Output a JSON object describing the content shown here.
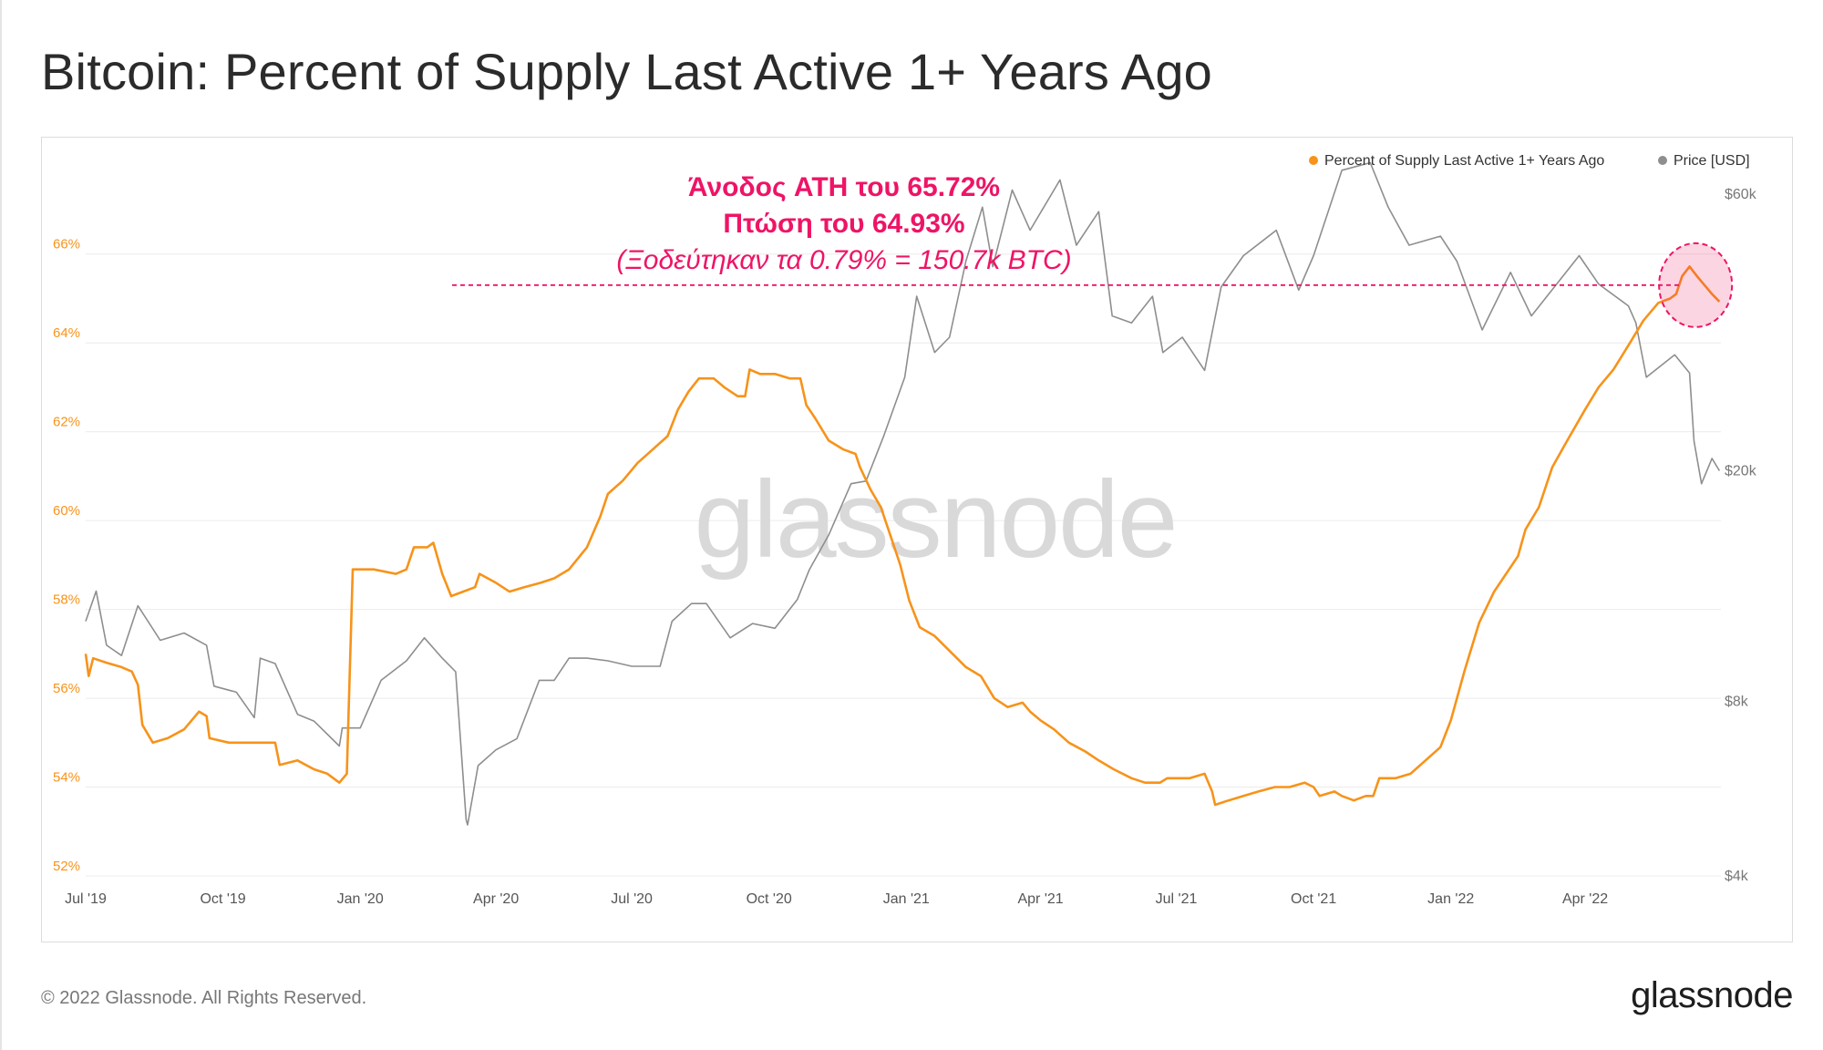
{
  "title": "Bitcoin: Percent of Supply Last Active 1+ Years Ago",
  "footer": {
    "copyright": "© 2022 Glassnode. All Rights Reserved.",
    "logo": "glassnode"
  },
  "watermark": "glassnode",
  "annotation": {
    "line1": "Άνοδος ATH του 65.72%",
    "line2": "Πτώση του 64.93%",
    "line3": "(Ξοδεύτηκαν τα 0.79% = 150.7k BTC)",
    "color": "#ee1466"
  },
  "chart_data": {
    "type": "line",
    "x_tick_labels": [
      "Jul '19",
      "Oct '19",
      "Jan '20",
      "Apr '20",
      "Jul '20",
      "Oct '20",
      "Jan '21",
      "Apr '21",
      "Jul '21",
      "Oct '21",
      "Jan '22",
      "Apr '22"
    ],
    "x_tick_dates": [
      "2019-07-01",
      "2019-10-01",
      "2020-01-01",
      "2020-04-01",
      "2020-07-01",
      "2020-10-01",
      "2021-01-01",
      "2021-04-01",
      "2021-07-01",
      "2021-10-01",
      "2022-01-01",
      "2022-04-01"
    ],
    "x_range": [
      "2019-07-01",
      "2022-07-01"
    ],
    "y_left": {
      "ticks": [
        52,
        54,
        56,
        58,
        60,
        62,
        64,
        66
      ],
      "tick_labels": [
        "52%",
        "54%",
        "56%",
        "58%",
        "60%",
        "62%",
        "64%",
        "66%"
      ],
      "range": [
        52,
        67.8
      ],
      "color": "#f7931a"
    },
    "y_right": {
      "scale": "log",
      "tick_labels": [
        "$4k",
        "$8k",
        "$20k",
        "$60k"
      ],
      "ticks": [
        4000,
        8000,
        20000,
        60000
      ],
      "range": [
        4000,
        65000
      ],
      "color": "#777777"
    },
    "grid": true,
    "legend_position": "top-right",
    "series": [
      {
        "name": "Percent of Supply Last Active 1+ Years Ago",
        "axis": "left",
        "color": "#f7931a",
        "points": [
          [
            "2019-07-01",
            57.0
          ],
          [
            "2019-07-03",
            56.5
          ],
          [
            "2019-07-06",
            56.9
          ],
          [
            "2019-07-15",
            56.8
          ],
          [
            "2019-07-25",
            56.7
          ],
          [
            "2019-08-01",
            56.6
          ],
          [
            "2019-08-05",
            56.3
          ],
          [
            "2019-08-08",
            55.4
          ],
          [
            "2019-08-15",
            55.0
          ],
          [
            "2019-08-25",
            55.1
          ],
          [
            "2019-09-05",
            55.3
          ],
          [
            "2019-09-15",
            55.7
          ],
          [
            "2019-09-20",
            55.6
          ],
          [
            "2019-09-22",
            55.1
          ],
          [
            "2019-10-05",
            55.0
          ],
          [
            "2019-10-20",
            55.0
          ],
          [
            "2019-11-05",
            55.0
          ],
          [
            "2019-11-08",
            54.5
          ],
          [
            "2019-11-20",
            54.6
          ],
          [
            "2019-12-01",
            54.4
          ],
          [
            "2019-12-10",
            54.3
          ],
          [
            "2019-12-18",
            54.1
          ],
          [
            "2019-12-23",
            54.3
          ],
          [
            "2019-12-27",
            58.9
          ],
          [
            "2020-01-10",
            58.9
          ],
          [
            "2020-01-25",
            58.8
          ],
          [
            "2020-02-01",
            58.9
          ],
          [
            "2020-02-06",
            59.4
          ],
          [
            "2020-02-15",
            59.4
          ],
          [
            "2020-02-19",
            59.5
          ],
          [
            "2020-02-25",
            58.8
          ],
          [
            "2020-03-02",
            58.3
          ],
          [
            "2020-03-10",
            58.4
          ],
          [
            "2020-03-18",
            58.5
          ],
          [
            "2020-03-21",
            58.8
          ],
          [
            "2020-04-01",
            58.6
          ],
          [
            "2020-04-10",
            58.4
          ],
          [
            "2020-04-20",
            58.5
          ],
          [
            "2020-05-01",
            58.6
          ],
          [
            "2020-05-10",
            58.7
          ],
          [
            "2020-05-20",
            58.9
          ],
          [
            "2020-06-01",
            59.4
          ],
          [
            "2020-06-10",
            60.1
          ],
          [
            "2020-06-15",
            60.6
          ],
          [
            "2020-06-25",
            60.9
          ],
          [
            "2020-07-05",
            61.3
          ],
          [
            "2020-07-15",
            61.6
          ],
          [
            "2020-07-25",
            61.9
          ],
          [
            "2020-08-01",
            62.5
          ],
          [
            "2020-08-08",
            62.9
          ],
          [
            "2020-08-15",
            63.2
          ],
          [
            "2020-08-25",
            63.2
          ],
          [
            "2020-09-01",
            63.0
          ],
          [
            "2020-09-10",
            62.8
          ],
          [
            "2020-09-15",
            62.8
          ],
          [
            "2020-09-18",
            63.4
          ],
          [
            "2020-09-25",
            63.3
          ],
          [
            "2020-10-05",
            63.3
          ],
          [
            "2020-10-15",
            63.2
          ],
          [
            "2020-10-22",
            63.2
          ],
          [
            "2020-10-26",
            62.6
          ],
          [
            "2020-11-01",
            62.3
          ],
          [
            "2020-11-10",
            61.8
          ],
          [
            "2020-11-20",
            61.6
          ],
          [
            "2020-11-28",
            61.5
          ],
          [
            "2020-12-01",
            61.2
          ],
          [
            "2020-12-08",
            60.7
          ],
          [
            "2020-12-15",
            60.3
          ],
          [
            "2020-12-22",
            59.6
          ],
          [
            "2020-12-28",
            59.0
          ],
          [
            "2021-01-03",
            58.2
          ],
          [
            "2021-01-10",
            57.6
          ],
          [
            "2021-01-20",
            57.4
          ],
          [
            "2021-02-01",
            57.0
          ],
          [
            "2021-02-10",
            56.7
          ],
          [
            "2021-02-20",
            56.5
          ],
          [
            "2021-03-01",
            56.0
          ],
          [
            "2021-03-10",
            55.8
          ],
          [
            "2021-03-20",
            55.9
          ],
          [
            "2021-03-25",
            55.7
          ],
          [
            "2021-04-01",
            55.5
          ],
          [
            "2021-04-10",
            55.3
          ],
          [
            "2021-04-20",
            55.0
          ],
          [
            "2021-05-01",
            54.8
          ],
          [
            "2021-05-10",
            54.6
          ],
          [
            "2021-05-20",
            54.4
          ],
          [
            "2021-06-01",
            54.2
          ],
          [
            "2021-06-10",
            54.1
          ],
          [
            "2021-06-20",
            54.1
          ],
          [
            "2021-06-25",
            54.2
          ],
          [
            "2021-07-10",
            54.2
          ],
          [
            "2021-07-20",
            54.3
          ],
          [
            "2021-07-25",
            53.9
          ],
          [
            "2021-07-27",
            53.6
          ],
          [
            "2021-08-05",
            53.7
          ],
          [
            "2021-08-15",
            53.8
          ],
          [
            "2021-08-25",
            53.9
          ],
          [
            "2021-09-05",
            54.0
          ],
          [
            "2021-09-15",
            54.0
          ],
          [
            "2021-09-25",
            54.1
          ],
          [
            "2021-10-01",
            54.0
          ],
          [
            "2021-10-05",
            53.8
          ],
          [
            "2021-10-15",
            53.9
          ],
          [
            "2021-10-20",
            53.8
          ],
          [
            "2021-10-28",
            53.7
          ],
          [
            "2021-11-05",
            53.8
          ],
          [
            "2021-11-10",
            53.8
          ],
          [
            "2021-11-14",
            54.2
          ],
          [
            "2021-11-25",
            54.2
          ],
          [
            "2021-12-05",
            54.3
          ],
          [
            "2021-12-15",
            54.6
          ],
          [
            "2021-12-25",
            54.9
          ],
          [
            "2022-01-01",
            55.5
          ],
          [
            "2022-01-10",
            56.6
          ],
          [
            "2022-01-20",
            57.7
          ],
          [
            "2022-01-30",
            58.4
          ],
          [
            "2022-02-05",
            58.7
          ],
          [
            "2022-02-15",
            59.2
          ],
          [
            "2022-02-20",
            59.8
          ],
          [
            "2022-03-01",
            60.3
          ],
          [
            "2022-03-10",
            61.2
          ],
          [
            "2022-03-20",
            61.8
          ],
          [
            "2022-04-01",
            62.5
          ],
          [
            "2022-04-10",
            63.0
          ],
          [
            "2022-04-20",
            63.4
          ],
          [
            "2022-05-01",
            64.0
          ],
          [
            "2022-05-10",
            64.5
          ],
          [
            "2022-05-20",
            64.9
          ],
          [
            "2022-05-28",
            65.0
          ],
          [
            "2022-06-01",
            65.1
          ],
          [
            "2022-06-05",
            65.5
          ],
          [
            "2022-06-10",
            65.72
          ],
          [
            "2022-06-15",
            65.5
          ],
          [
            "2022-06-20",
            65.3
          ],
          [
            "2022-06-25",
            65.1
          ],
          [
            "2022-06-30",
            64.93
          ]
        ]
      },
      {
        "name": "Price [USD]",
        "axis": "right",
        "color": "#8e8e8e",
        "points": [
          [
            "2019-07-01",
            11000
          ],
          [
            "2019-07-08",
            12400
          ],
          [
            "2019-07-15",
            10000
          ],
          [
            "2019-07-25",
            9600
          ],
          [
            "2019-08-05",
            11700
          ],
          [
            "2019-08-20",
            10200
          ],
          [
            "2019-09-05",
            10500
          ],
          [
            "2019-09-20",
            10000
          ],
          [
            "2019-09-25",
            8500
          ],
          [
            "2019-10-10",
            8300
          ],
          [
            "2019-10-22",
            7500
          ],
          [
            "2019-10-26",
            9500
          ],
          [
            "2019-11-05",
            9300
          ],
          [
            "2019-11-20",
            7600
          ],
          [
            "2019-12-01",
            7400
          ],
          [
            "2019-12-18",
            6700
          ],
          [
            "2019-12-20",
            7200
          ],
          [
            "2020-01-01",
            7200
          ],
          [
            "2020-01-15",
            8700
          ],
          [
            "2020-02-01",
            9400
          ],
          [
            "2020-02-13",
            10300
          ],
          [
            "2020-02-25",
            9500
          ],
          [
            "2020-03-05",
            9000
          ],
          [
            "2020-03-12",
            5000
          ],
          [
            "2020-03-13",
            4900
          ],
          [
            "2020-03-20",
            6200
          ],
          [
            "2020-04-01",
            6600
          ],
          [
            "2020-04-15",
            6900
          ],
          [
            "2020-04-30",
            8700
          ],
          [
            "2020-05-10",
            8700
          ],
          [
            "2020-05-20",
            9500
          ],
          [
            "2020-06-01",
            9500
          ],
          [
            "2020-06-15",
            9400
          ],
          [
            "2020-07-01",
            9200
          ],
          [
            "2020-07-20",
            9200
          ],
          [
            "2020-07-28",
            11000
          ],
          [
            "2020-08-10",
            11800
          ],
          [
            "2020-08-20",
            11800
          ],
          [
            "2020-09-05",
            10300
          ],
          [
            "2020-09-20",
            10900
          ],
          [
            "2020-10-05",
            10700
          ],
          [
            "2020-10-20",
            12000
          ],
          [
            "2020-10-28",
            13500
          ],
          [
            "2020-11-10",
            15500
          ],
          [
            "2020-11-25",
            19000
          ],
          [
            "2020-12-05",
            19200
          ],
          [
            "2020-12-17",
            23000
          ],
          [
            "2020-12-31",
            29000
          ],
          [
            "2021-01-08",
            40000
          ],
          [
            "2021-01-20",
            32000
          ],
          [
            "2021-01-30",
            34000
          ],
          [
            "2021-02-10",
            46000
          ],
          [
            "2021-02-21",
            57000
          ],
          [
            "2021-02-28",
            45000
          ],
          [
            "2021-03-13",
            61000
          ],
          [
            "2021-03-25",
            52000
          ],
          [
            "2021-04-14",
            63500
          ],
          [
            "2021-04-25",
            49000
          ],
          [
            "2021-05-10",
            56000
          ],
          [
            "2021-05-19",
            37000
          ],
          [
            "2021-06-01",
            36000
          ],
          [
            "2021-06-15",
            40000
          ],
          [
            "2021-06-22",
            32000
          ],
          [
            "2021-07-05",
            34000
          ],
          [
            "2021-07-20",
            29800
          ],
          [
            "2021-07-31",
            41500
          ],
          [
            "2021-08-15",
            47000
          ],
          [
            "2021-09-06",
            52000
          ],
          [
            "2021-09-21",
            41000
          ],
          [
            "2021-10-01",
            47000
          ],
          [
            "2021-10-20",
            66000
          ],
          [
            "2021-11-08",
            68000
          ],
          [
            "2021-11-20",
            57000
          ],
          [
            "2021-12-04",
            49000
          ],
          [
            "2021-12-25",
            50800
          ],
          [
            "2022-01-05",
            46000
          ],
          [
            "2022-01-22",
            35000
          ],
          [
            "2022-02-10",
            44000
          ],
          [
            "2022-02-24",
            37000
          ],
          [
            "2022-03-28",
            47000
          ],
          [
            "2022-04-10",
            42000
          ],
          [
            "2022-04-30",
            38500
          ],
          [
            "2022-05-05",
            36000
          ],
          [
            "2022-05-12",
            29000
          ],
          [
            "2022-05-31",
            31700
          ],
          [
            "2022-06-10",
            29500
          ],
          [
            "2022-06-13",
            22500
          ],
          [
            "2022-06-18",
            19000
          ],
          [
            "2022-06-25",
            21000
          ],
          [
            "2022-06-30",
            20000
          ]
        ]
      }
    ]
  }
}
